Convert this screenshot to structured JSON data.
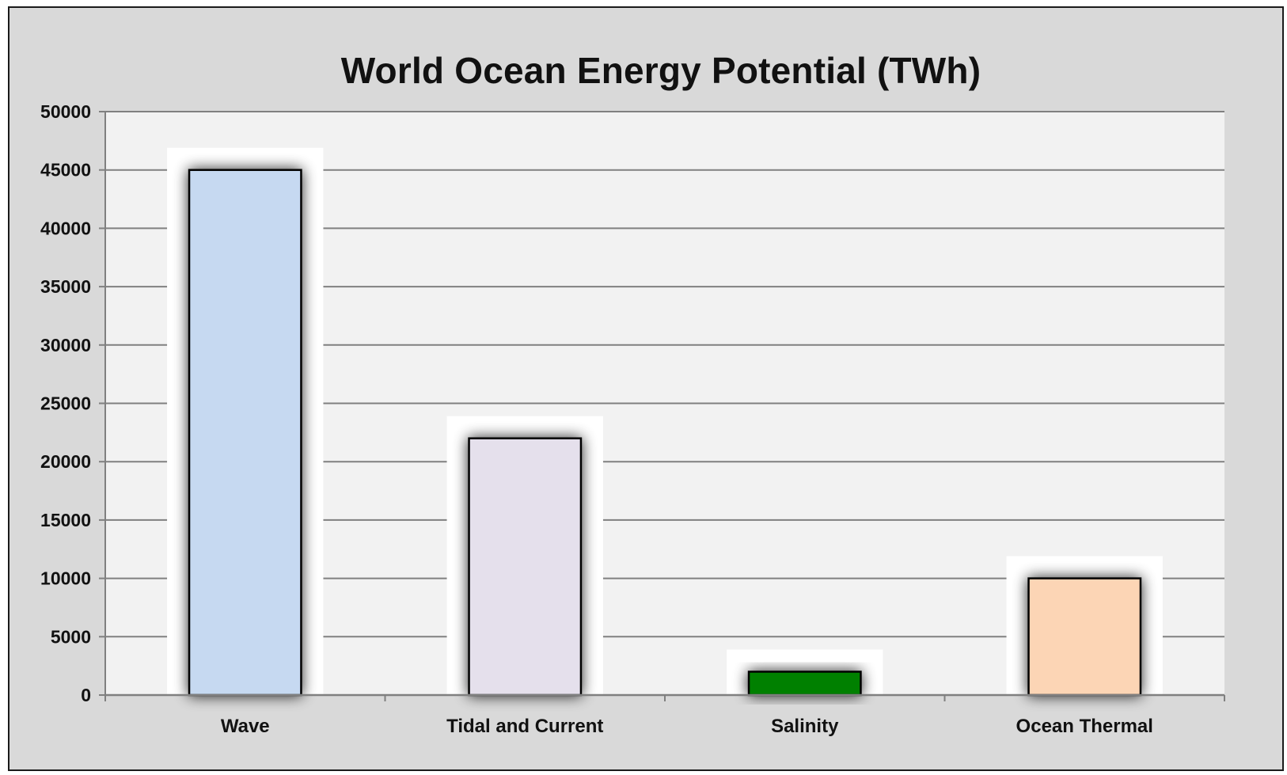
{
  "chart_data": {
    "type": "bar",
    "title": "World Ocean Energy Potential (TWh)",
    "xlabel": "",
    "ylabel": "",
    "categories": [
      "Wave",
      "Tidal and Current",
      "Salinity",
      "Ocean Thermal"
    ],
    "values": [
      45000,
      22000,
      2000,
      10000
    ],
    "ylim": [
      0,
      50000
    ],
    "yticks": [
      "0",
      "5000",
      "10000",
      "15000",
      "20000",
      "25000",
      "30000",
      "35000",
      "40000",
      "45000",
      "50000"
    ],
    "grid": true,
    "legend": "none",
    "colors": {
      "bars": [
        "#c6d9f1",
        "#e5e0ec",
        "#008000",
        "#fcd5b5"
      ],
      "bar_border": "#000000",
      "plot_background": "#f2f2f2",
      "chart_background": "#d9d9d9",
      "gridline": "#808080"
    }
  }
}
